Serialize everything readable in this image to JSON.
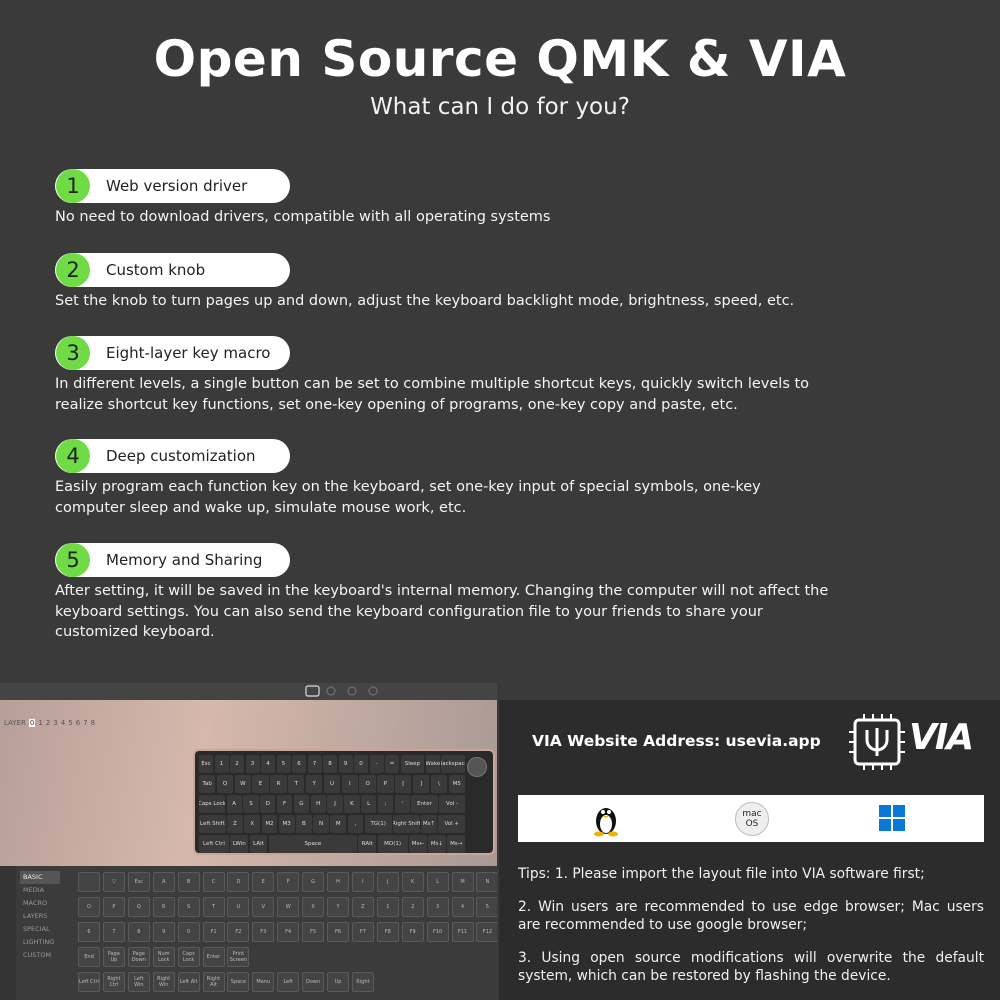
{
  "header": {
    "title": "Open Source QMK & VIA",
    "subtitle": "What can I do for you?"
  },
  "features": [
    {
      "number": 1,
      "label": "Web version driver",
      "description": "No need to download drivers, compatible with all operating systems"
    },
    {
      "number": 2,
      "label": "Custom knob",
      "description": "Set the knob to turn pages up and down, adjust the keyboard backlight mode, brightness, speed, etc."
    },
    {
      "number": 3,
      "label": "Eight-layer key macro",
      "description": "In different levels, a single button can be set to combine multiple shortcut keys, quickly switch levels to realize shortcut key functions, set one-key opening of programs, one-key copy and paste, etc."
    },
    {
      "number": 4,
      "label": "Deep customization",
      "description": "Easily program each function key on the keyboard, set one-key input of special symbols, one-key computer sleep and wake up, simulate mouse work, etc."
    },
    {
      "number": 5,
      "label": "Memory and Sharing",
      "description": "After setting, it will be saved in the keyboard's internal memory. Changing the computer will not affect the keyboard settings. You can also send the keyboard configuration file to your friends to share your customized keyboard."
    }
  ],
  "via_app": {
    "layer_label": "LAYER",
    "layers": [
      0,
      1,
      2,
      3,
      4,
      5,
      6,
      7,
      8
    ],
    "keyboard_rows": [
      [
        "Esc",
        "1",
        "2",
        "3",
        "4",
        "5",
        "6",
        "7",
        "8",
        "9",
        "0",
        "-",
        "=",
        "Sleep",
        "Wake",
        "Backspace"
      ],
      [
        "Tab",
        "Q",
        "W",
        "E",
        "R",
        "T",
        "Y",
        "U",
        "I",
        "O",
        "P",
        "[",
        "]",
        "\\",
        "M5"
      ],
      [
        "Caps Lock",
        "A",
        "S",
        "D",
        "F",
        "G",
        "H",
        "J",
        "K",
        "L",
        ";",
        "'",
        "Enter",
        "Vol -"
      ],
      [
        "Left Shift",
        "Z",
        "X",
        "M2",
        "M3",
        "B",
        "N",
        "M",
        ",",
        "TG(1)",
        "Right Shift",
        "Ms↑",
        "Vol +"
      ],
      [
        "Left Ctrl",
        "LWin",
        "LAlt",
        "Space",
        "RAlt",
        "MO(1)",
        "Ms←",
        "Ms↓",
        "Ms→"
      ]
    ],
    "menu": [
      "BASIC",
      "MEDIA",
      "MACRO",
      "LAYERS",
      "SPECIAL",
      "LIGHTING",
      "CUSTOM"
    ],
    "keycode_rows": [
      [
        "▽",
        "Esc",
        "A",
        "B",
        "C",
        "D",
        "E",
        "F",
        "G",
        "H",
        "I",
        "J",
        "K",
        "L",
        "M",
        "N"
      ],
      [
        "O",
        "P",
        "Q",
        "R",
        "S",
        "T",
        "U",
        "V",
        "W",
        "X",
        "Y",
        "Z",
        "1",
        "2",
        "3",
        "4",
        "5"
      ],
      [
        "6",
        "7",
        "8",
        "9",
        "0",
        "F1",
        "F2",
        "F3",
        "F4",
        "F5",
        "F6",
        "F7",
        "F8",
        "F9",
        "F10",
        "F11",
        "F12"
      ],
      [
        "End",
        "Page Up",
        "Page Down",
        "Num Lock",
        "Caps Lock",
        "Enter",
        "Print Screen"
      ],
      [
        "Left Ctrl",
        "Right Ctrl",
        "Left Win",
        "Right Win",
        "Left Alt",
        "Right Alt",
        "Space",
        "Menu",
        "Left",
        "Down",
        "Up",
        "Right"
      ]
    ]
  },
  "panel": {
    "website": "VIA Website Address: usevia.app",
    "logo": "VIA",
    "mac_icon": "mac\nOS",
    "tips": [
      "Tips: 1. Please import the layout file into VIA software first;",
      "2. Win users are recommended to use edge browser; Mac users are recommended to use google browser;",
      "3. Using open source modifications will overwrite the default system, which can be restored by flashing the device."
    ]
  }
}
